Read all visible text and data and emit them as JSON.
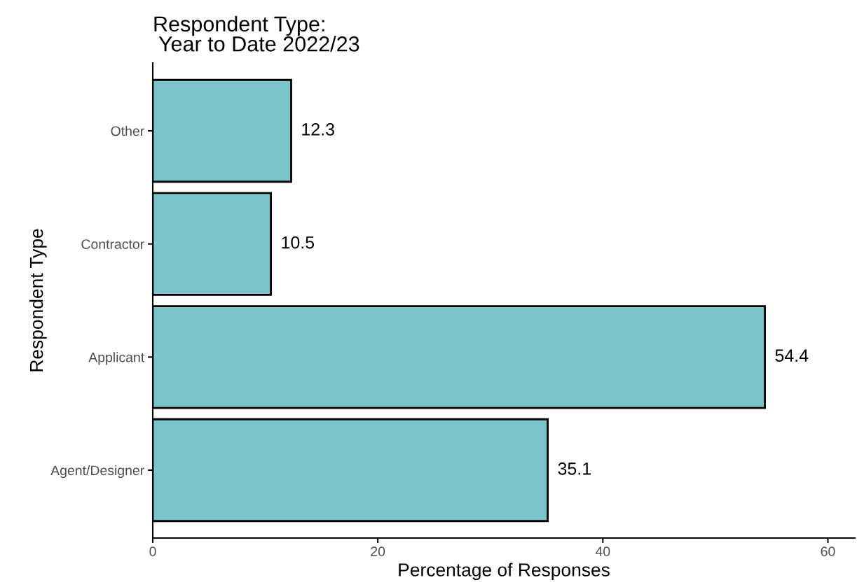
{
  "chart_data": {
    "type": "bar",
    "orientation": "horizontal",
    "title": "Respondent Type:\n Year to Date 2022/23",
    "xlabel": "Percentage of Responses",
    "ylabel": "Respondent Type",
    "categories": [
      "Other",
      "Contractor",
      "Applicant",
      "Agent/Designer"
    ],
    "values": [
      12.3,
      10.5,
      54.4,
      35.1
    ],
    "color": "#7ac4cc",
    "data_labels": true,
    "xlim": [
      0,
      62.4
    ],
    "xticks": [
      0,
      20,
      40,
      60
    ],
    "grid": false,
    "legend": false
  }
}
